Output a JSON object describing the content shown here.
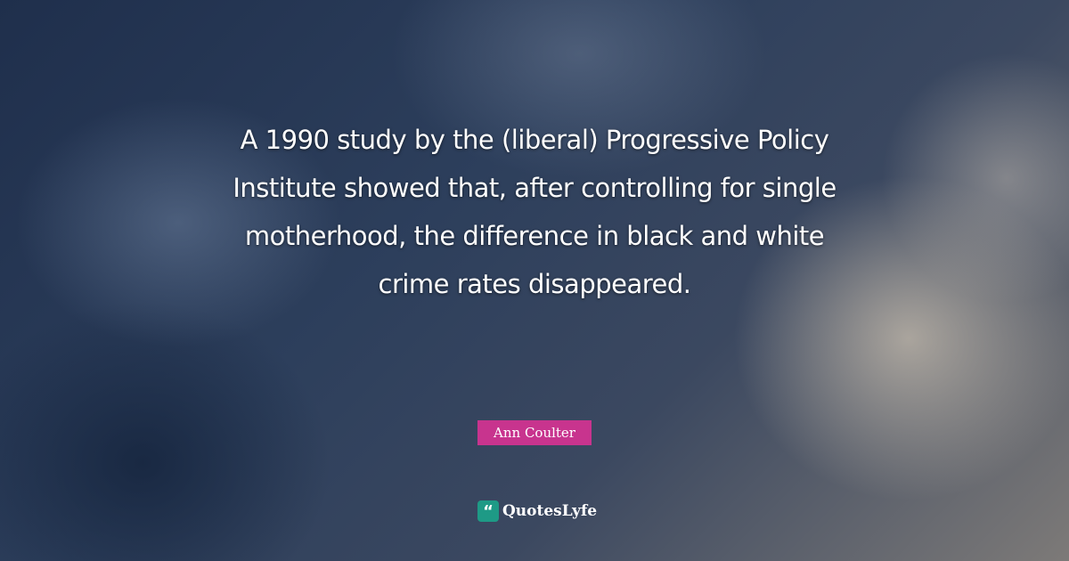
{
  "quote": {
    "text": "A 1990 study by the (liberal) Progressive Policy Institute showed that, after controlling for single motherhood, the difference in black and white crime rates disappeared."
  },
  "author": {
    "name": "Ann Coulter",
    "color": "#c8348e"
  },
  "brand": {
    "name": "QuotesLyfe",
    "icon": "quote-mark-icon",
    "color": "#1e9a86"
  }
}
